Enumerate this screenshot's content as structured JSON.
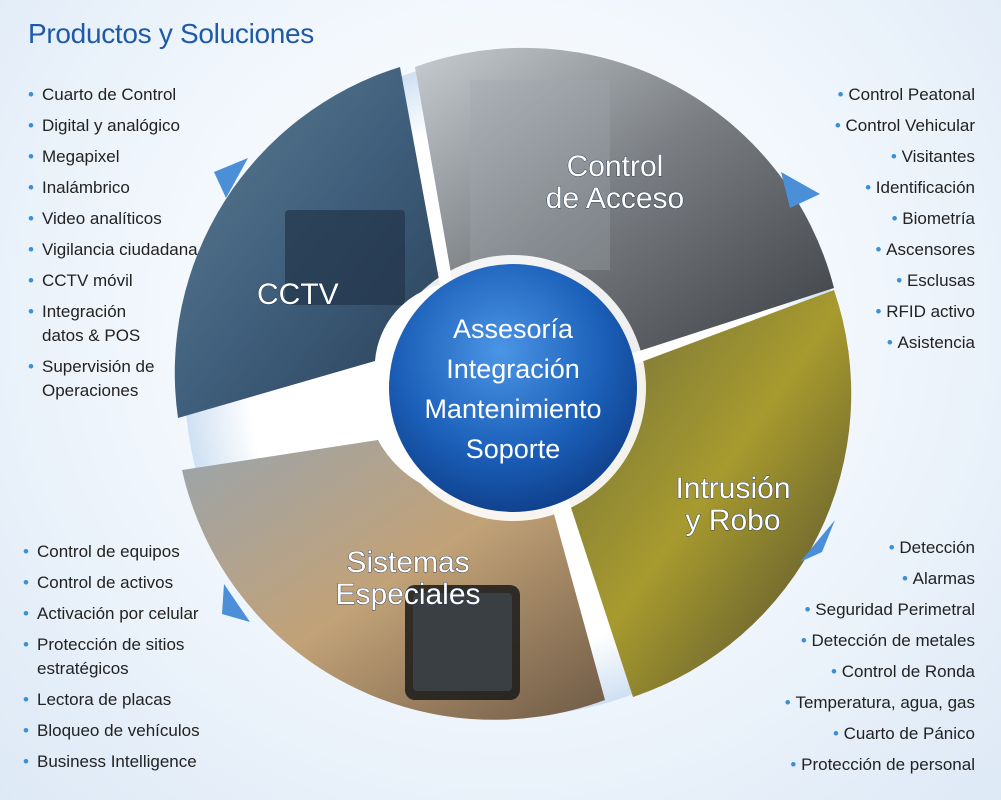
{
  "title": "Productos y Soluciones",
  "hub": {
    "lines": [
      "Assesoría",
      "Integración",
      "Mantenimiento",
      "Soporte"
    ]
  },
  "segments": {
    "cctv": {
      "label": "CCTV"
    },
    "access": {
      "label_line1": "Control",
      "label_line2": "de Acceso"
    },
    "intrusion": {
      "label_line1": "Intrusión",
      "label_line2": "y Robo"
    },
    "special": {
      "label_line1": "Sistemas",
      "label_line2": "Especiales"
    }
  },
  "lists": {
    "cctv": [
      "Cuarto de Control",
      "Digital y analógico",
      "Megapixel",
      "Inalámbrico",
      "Video analíticos",
      "Vigilancia ciudadana",
      "CCTV móvil",
      "Integración\ndatos & POS",
      "Supervisión de\nOperaciones"
    ],
    "access": [
      "Control Peatonal",
      "Control Vehicular",
      "Visitantes",
      "Identificación",
      "Biometría",
      "Ascensores",
      "Esclusas",
      "RFID activo",
      "Asistencia"
    ],
    "special": [
      "Control de equipos",
      "Control de activos",
      "Activación por celular",
      "Protección de sitios\nestratégicos",
      "Lectora de placas",
      "Bloqueo de vehículos",
      "Business Intelligence"
    ],
    "intrusion": [
      "Detección",
      "Alarmas",
      "Seguridad Perimetral",
      "Detección de metales",
      "Control de Ronda",
      "Temperatura, agua, gas",
      "Cuarto de Pánico",
      "Protección de personal"
    ]
  },
  "colors": {
    "title": "#1f5aa6",
    "bullet": "#3b8fd6",
    "hub": "#1b5fb8",
    "arrow": "#4a8fd8"
  }
}
